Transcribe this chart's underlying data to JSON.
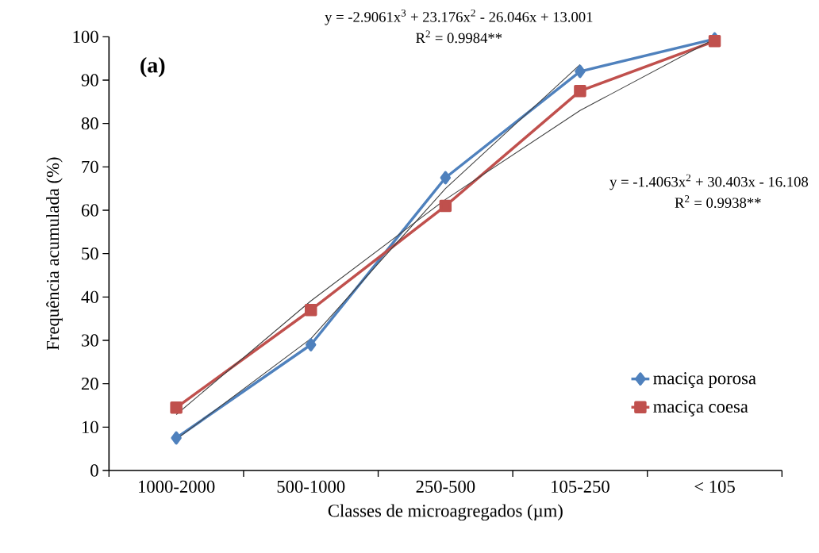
{
  "chart_data": {
    "type": "line",
    "xlabel": "Classes de microagregados (µm)",
    "ylabel": "Frequência acumulada (%)",
    "categories": [
      "1000-2000",
      "500-1000",
      "250-500",
      "105-250",
      "< 105"
    ],
    "ylim": [
      0,
      100
    ],
    "yticks": [
      0,
      10,
      20,
      30,
      40,
      50,
      60,
      70,
      80,
      90,
      100
    ],
    "grid": false,
    "legend": "bottom right",
    "series": [
      {
        "name": "maciça porosa",
        "color": "#4f81bd",
        "marker": "diamond",
        "values": [
          7.5,
          29,
          67.5,
          92,
          99.5
        ]
      },
      {
        "name": "maciça coesa",
        "color": "#c0504d",
        "marker": "square",
        "values": [
          14.5,
          37,
          61,
          87.5,
          99
        ]
      },
      {
        "type": "line",
        "color": "#404040",
        "marker": "none",
        "values": [
          7.2,
          30.4,
          65.0,
          93.6,
          null
        ]
      },
      {
        "type": "line",
        "color": "#404040",
        "marker": "none",
        "values": [
          12.9,
          39.1,
          62.5,
          83.0,
          99.5
        ]
      }
    ],
    "annotations": [
      "(a)",
      "y = -2.9061x$^{3}$ + 23.176x$^{2}$ - 26.046x + 13.001",
      "R$^{2}$ = 0.9984**",
      "y = -1.4063x$^{2}$ + 30.403x - 16.108",
      "R$^{2}$ = 0.9938**"
    ]
  }
}
